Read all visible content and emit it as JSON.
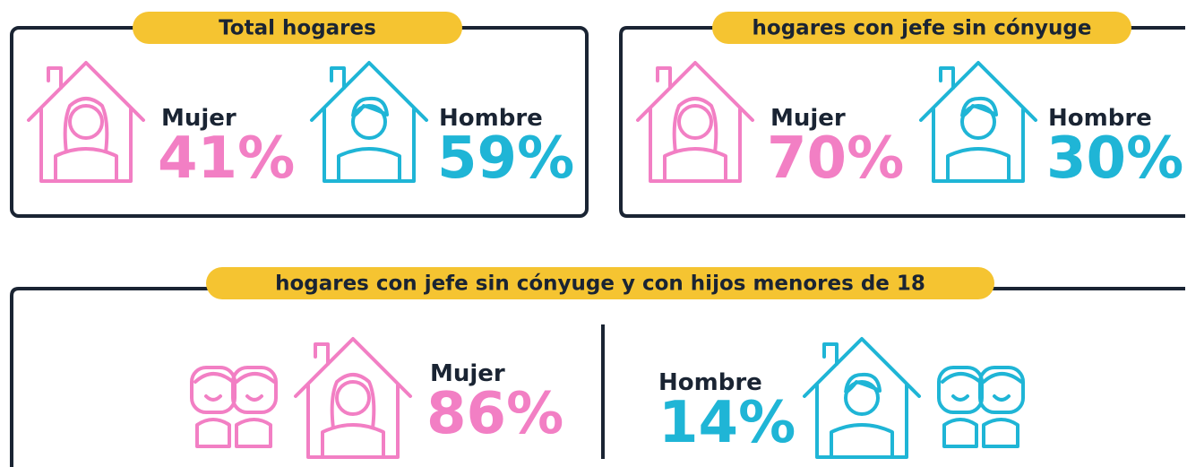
{
  "panels": [
    {
      "title": "Total hogares",
      "items": [
        {
          "label": "Mujer",
          "value": "41%"
        },
        {
          "label": "Hombre",
          "value": "59%"
        }
      ]
    },
    {
      "title": "hogares con jefe sin cónyuge",
      "items": [
        {
          "label": "Mujer",
          "value": "70%"
        },
        {
          "label": "Hombre",
          "value": "30%"
        }
      ]
    },
    {
      "title": "hogares con jefe sin cónyuge y con hijos menores de 18",
      "items": [
        {
          "label": "Mujer",
          "value": "86%"
        },
        {
          "label": "Hombre",
          "value": "14%"
        }
      ]
    }
  ]
}
